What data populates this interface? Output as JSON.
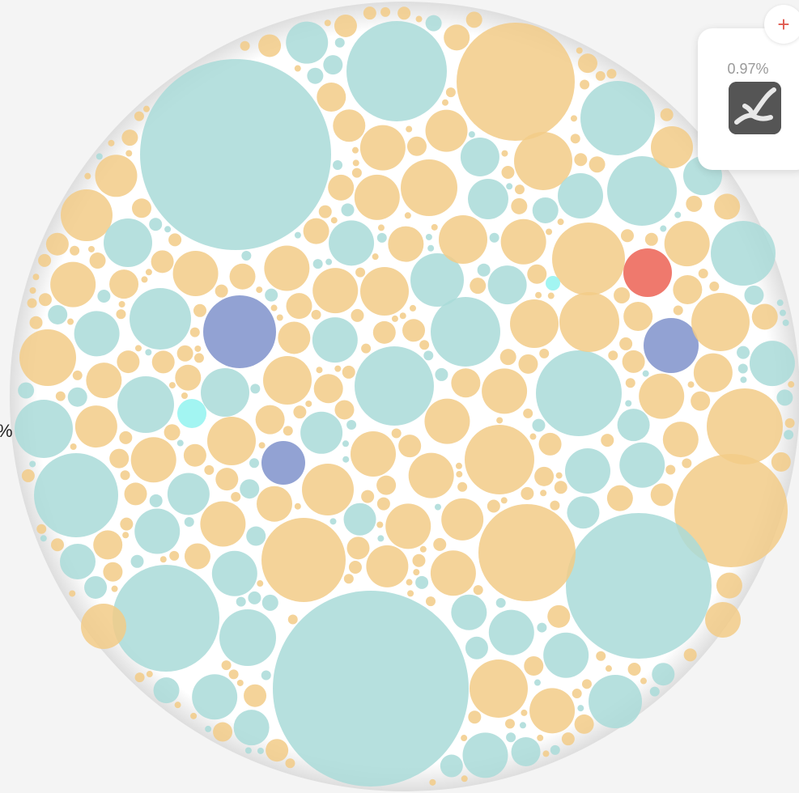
{
  "tooltip": {
    "value": "0.97%"
  },
  "left_label": "%",
  "corner_button": "+"
}
